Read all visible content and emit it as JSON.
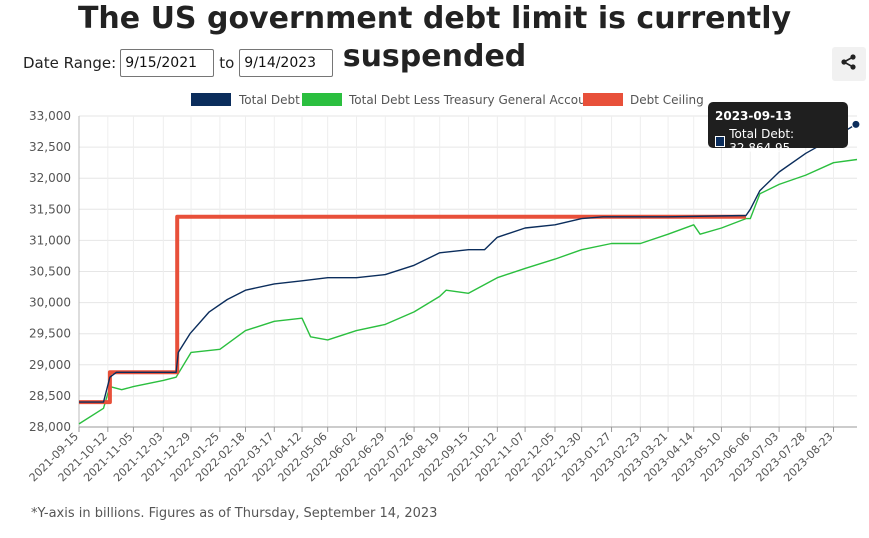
{
  "title": "The US government debt limit is currently suspended",
  "controls": {
    "date_range_label": "Date Range:",
    "start_date": "9/15/2021",
    "to_label": "to",
    "end_date": "9/14/2023"
  },
  "share_icon": "share-icon",
  "footnote": "*Y-axis in billions. Figures as of Thursday, September 14, 2023",
  "tooltip": {
    "date": "2023-09-13",
    "text": "Total Debt: 32,864.95"
  },
  "chart_data": {
    "type": "line",
    "xlim": [
      "2021-09-15",
      "2023-09-14"
    ],
    "ylim": [
      28000,
      33000
    ],
    "yticks": [
      28000,
      28500,
      29000,
      29500,
      30000,
      30500,
      31000,
      31500,
      32000,
      32500,
      33000
    ],
    "ytick_labels": [
      "28,000",
      "28,500",
      "29,000",
      "29,500",
      "30,000",
      "30,500",
      "31,000",
      "31,500",
      "32,000",
      "32,500",
      "33,000"
    ],
    "xtick_labels": [
      "2021-09-15",
      "2021-10-12",
      "2021-11-05",
      "2021-12-03",
      "2021-12-29",
      "2022-01-25",
      "2022-02-18",
      "2022-03-17",
      "2022-04-12",
      "2022-05-06",
      "2022-06-02",
      "2022-06-29",
      "2022-07-26",
      "2022-08-19",
      "2022-09-15",
      "2022-10-12",
      "2022-11-07",
      "2022-12-05",
      "2022-12-30",
      "2023-01-27",
      "2023-02-23",
      "2023-03-21",
      "2023-04-14",
      "2023-05-10",
      "2023-06-06",
      "2023-07-03",
      "2023-07-28",
      "2023-08-23"
    ],
    "grid": true,
    "legend_position": "top",
    "colors": {
      "total_debt": "#0b2d5c",
      "less_tga": "#2bbf3f",
      "ceiling": "#e8503a"
    },
    "series": [
      {
        "name": "Total Debt",
        "key": "total_debt",
        "x": [
          "2021-09-15",
          "2021-10-08",
          "2021-10-14",
          "2021-10-20",
          "2021-11-01",
          "2021-11-15",
          "2021-12-01",
          "2021-12-15",
          "2021-12-17",
          "2021-12-28",
          "2022-01-15",
          "2022-02-01",
          "2022-02-18",
          "2022-03-17",
          "2022-04-12",
          "2022-05-06",
          "2022-06-02",
          "2022-06-29",
          "2022-07-26",
          "2022-08-19",
          "2022-09-15",
          "2022-09-30",
          "2022-10-12",
          "2022-11-07",
          "2022-12-05",
          "2022-12-30",
          "2023-01-19",
          "2023-03-21",
          "2023-06-02",
          "2023-06-06",
          "2023-06-15",
          "2023-07-03",
          "2023-07-28",
          "2023-08-23",
          "2023-09-13"
        ],
        "values": [
          28400,
          28400,
          28800,
          28880,
          28880,
          28880,
          28880,
          28880,
          29200,
          29500,
          29850,
          30050,
          30200,
          30300,
          30350,
          30400,
          30400,
          30450,
          30600,
          30800,
          30850,
          30850,
          31050,
          31200,
          31250,
          31350,
          31380,
          31380,
          31400,
          31500,
          31800,
          32100,
          32400,
          32650,
          32865
        ]
      },
      {
        "name": "Total Debt Less Treasury General Account",
        "key": "less_tga",
        "x": [
          "2021-09-15",
          "2021-10-08",
          "2021-10-14",
          "2021-10-25",
          "2021-11-05",
          "2021-12-03",
          "2021-12-15",
          "2021-12-29",
          "2022-01-25",
          "2022-02-18",
          "2022-03-17",
          "2022-04-12",
          "2022-04-20",
          "2022-05-06",
          "2022-06-02",
          "2022-06-29",
          "2022-07-26",
          "2022-08-19",
          "2022-08-25",
          "2022-09-15",
          "2022-10-12",
          "2022-11-07",
          "2022-12-05",
          "2022-12-30",
          "2023-01-27",
          "2023-02-23",
          "2023-03-21",
          "2023-04-14",
          "2023-04-20",
          "2023-05-10",
          "2023-06-02",
          "2023-06-06",
          "2023-06-15",
          "2023-07-03",
          "2023-07-28",
          "2023-08-23",
          "2023-09-14"
        ],
        "values": [
          28050,
          28300,
          28650,
          28600,
          28650,
          28750,
          28800,
          29200,
          29250,
          29550,
          29700,
          29750,
          29450,
          29400,
          29550,
          29650,
          29850,
          30100,
          30200,
          30150,
          30400,
          30550,
          30700,
          30850,
          30950,
          30950,
          31100,
          31250,
          31100,
          31200,
          31350,
          31350,
          31750,
          31900,
          32050,
          32250,
          32300
        ]
      },
      {
        "name": "Debt Ceiling",
        "key": "ceiling",
        "x": [
          "2021-09-15",
          "2021-10-14",
          "2021-10-14",
          "2021-12-16",
          "2021-12-16",
          "2023-06-02"
        ],
        "values": [
          28400,
          28400,
          28880,
          28880,
          31380,
          31380
        ]
      }
    ]
  }
}
